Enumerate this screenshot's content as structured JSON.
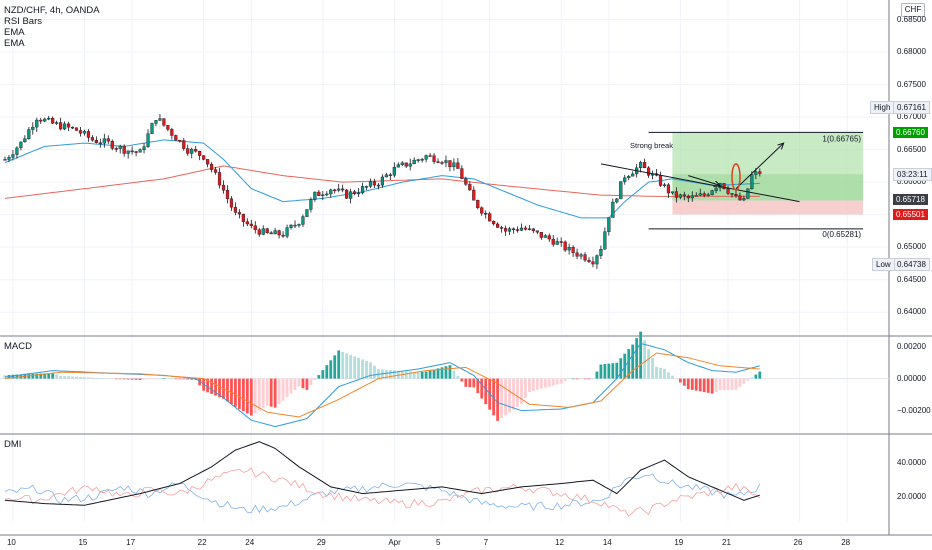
{
  "legend": {
    "symbol": "NZD/CHF, 4h, OANDA",
    "lines": [
      "RSI Bars",
      "EMA",
      "EMA"
    ]
  },
  "currency_badge": "CHF",
  "panes": {
    "macd_title": "MACD",
    "dmi_title": "DMI"
  },
  "price_axis": {
    "ticks": [
      "0.68500",
      "0.68000",
      "0.67500",
      "0.67000",
      "0.66500",
      "0.66000",
      "0.65500",
      "0.65000",
      "0.64500",
      "0.64000"
    ],
    "tick_values": [
      0.685,
      0.68,
      0.675,
      0.67,
      0.665,
      0.66,
      0.655,
      0.65,
      0.645,
      0.64
    ],
    "range": [
      0.6365,
      0.688
    ]
  },
  "price_tags": {
    "high_label": "High",
    "high_value": "0.67161",
    "high": 0.67161,
    "low_label": "Low",
    "low_value": "0.64738",
    "low": 0.64738,
    "take_profit": "0.66760",
    "take_profit_v": 0.6676,
    "countdown": "03:23:11",
    "countdown_v": 0.6612,
    "last_price": "0.65718",
    "last_price_v": 0.65718,
    "stop_loss": "0.65501",
    "stop_loss_v": 0.65501
  },
  "fib": {
    "top_label": "1(0.66765)",
    "top_v": 0.66765,
    "bottom_label": "0(0.65281)",
    "bottom_v": 0.65281
  },
  "annotation": "Strong break",
  "macd_axis": {
    "ticks": [
      "0.00200",
      "0.00000",
      "−0.00200"
    ],
    "tick_values": [
      0.002,
      0,
      -0.002
    ],
    "range": [
      -0.0034,
      0.0026
    ]
  },
  "dmi_axis": {
    "ticks": [
      "40.0000",
      "20.0000"
    ],
    "tick_values": [
      40,
      20
    ],
    "range": [
      5,
      57
    ]
  },
  "time_axis": {
    "labels": [
      "10",
      "15",
      "17",
      "22",
      "24",
      "29",
      "Apr",
      "5",
      "7",
      "12",
      "14",
      "19",
      "21",
      "26",
      "28"
    ],
    "bars": [
      2,
      20,
      32,
      50,
      62,
      80,
      98,
      110,
      122,
      140,
      152,
      170,
      182,
      200,
      212
    ]
  },
  "chart_data": {
    "type": "candlestick",
    "title": "NZD/CHF, 4h, OANDA",
    "bars_total": 220,
    "ohlc_anchors": [
      [
        0,
        0.6635
      ],
      [
        4,
        0.666
      ],
      [
        8,
        0.67
      ],
      [
        12,
        0.669
      ],
      [
        18,
        0.668
      ],
      [
        22,
        0.6665
      ],
      [
        26,
        0.666
      ],
      [
        30,
        0.665
      ],
      [
        34,
        0.6645
      ],
      [
        38,
        0.67
      ],
      [
        42,
        0.6675
      ],
      [
        46,
        0.665
      ],
      [
        50,
        0.664
      ],
      [
        54,
        0.66
      ],
      [
        58,
        0.655
      ],
      [
        62,
        0.653
      ],
      [
        66,
        0.652
      ],
      [
        70,
        0.652
      ],
      [
        74,
        0.654
      ],
      [
        78,
        0.658
      ],
      [
        82,
        0.659
      ],
      [
        86,
        0.658
      ],
      [
        90,
        0.659
      ],
      [
        94,
        0.66
      ],
      [
        98,
        0.662
      ],
      [
        102,
        0.663
      ],
      [
        106,
        0.664
      ],
      [
        110,
        0.6635
      ],
      [
        114,
        0.662
      ],
      [
        118,
        0.657
      ],
      [
        122,
        0.6545
      ],
      [
        126,
        0.6525
      ],
      [
        130,
        0.653
      ],
      [
        134,
        0.652
      ],
      [
        138,
        0.651
      ],
      [
        142,
        0.6495
      ],
      [
        148,
        0.648
      ],
      [
        150,
        0.65
      ],
      [
        152,
        0.655
      ],
      [
        156,
        0.661
      ],
      [
        160,
        0.6625
      ],
      [
        164,
        0.6605
      ],
      [
        168,
        0.658
      ],
      [
        172,
        0.6575
      ],
      [
        176,
        0.658
      ],
      [
        180,
        0.66
      ],
      [
        184,
        0.6575
      ],
      [
        186,
        0.657
      ],
      [
        188,
        0.661
      ],
      [
        190,
        0.6615
      ]
    ],
    "ema_fast_anchors": [
      [
        0,
        0.663
      ],
      [
        10,
        0.6655
      ],
      [
        20,
        0.666
      ],
      [
        30,
        0.6655
      ],
      [
        40,
        0.6665
      ],
      [
        50,
        0.666
      ],
      [
        55,
        0.6635
      ],
      [
        62,
        0.659
      ],
      [
        70,
        0.657
      ],
      [
        80,
        0.6575
      ],
      [
        90,
        0.6585
      ],
      [
        100,
        0.66
      ],
      [
        110,
        0.661
      ],
      [
        118,
        0.6605
      ],
      [
        124,
        0.659
      ],
      [
        134,
        0.6565
      ],
      [
        145,
        0.6545
      ],
      [
        152,
        0.6545
      ],
      [
        156,
        0.657
      ],
      [
        162,
        0.66
      ],
      [
        168,
        0.6605
      ],
      [
        178,
        0.6595
      ],
      [
        190,
        0.6598
      ]
    ],
    "ema_slow_anchors": [
      [
        0,
        0.6575
      ],
      [
        20,
        0.659
      ],
      [
        40,
        0.6605
      ],
      [
        55,
        0.6625
      ],
      [
        70,
        0.661
      ],
      [
        85,
        0.66
      ],
      [
        110,
        0.6605
      ],
      [
        125,
        0.6595
      ],
      [
        150,
        0.658
      ],
      [
        165,
        0.6578
      ],
      [
        190,
        0.6578
      ]
    ],
    "macd_line_anchors": [
      [
        0,
        0.0001
      ],
      [
        12,
        0.0005
      ],
      [
        30,
        0.0003
      ],
      [
        40,
        0.0002
      ],
      [
        48,
        0.0
      ],
      [
        55,
        -0.0012
      ],
      [
        62,
        -0.0026
      ],
      [
        68,
        -0.003
      ],
      [
        76,
        -0.0025
      ],
      [
        84,
        -0.0005
      ],
      [
        92,
        0.0002
      ],
      [
        104,
        0.0006
      ],
      [
        112,
        0.001
      ],
      [
        118,
        0.0002
      ],
      [
        124,
        -0.0015
      ],
      [
        130,
        -0.002
      ],
      [
        140,
        -0.0019
      ],
      [
        148,
        -0.0015
      ],
      [
        154,
        0.0
      ],
      [
        160,
        0.0022
      ],
      [
        166,
        0.0018
      ],
      [
        172,
        0.001
      ],
      [
        178,
        0.0005
      ],
      [
        184,
        0.0004
      ],
      [
        190,
        0.0008
      ]
    ],
    "macd_signal_anchors": [
      [
        0,
        0.0
      ],
      [
        14,
        0.0004
      ],
      [
        34,
        0.0003
      ],
      [
        50,
        0.0
      ],
      [
        58,
        -0.001
      ],
      [
        66,
        -0.0021
      ],
      [
        74,
        -0.0024
      ],
      [
        84,
        -0.0013
      ],
      [
        94,
        0.0
      ],
      [
        106,
        0.0005
      ],
      [
        116,
        0.0007
      ],
      [
        124,
        -0.0003
      ],
      [
        132,
        -0.0016
      ],
      [
        142,
        -0.0018
      ],
      [
        150,
        -0.0014
      ],
      [
        158,
        0.0005
      ],
      [
        164,
        0.0016
      ],
      [
        172,
        0.0013
      ],
      [
        180,
        0.0008
      ],
      [
        190,
        0.0006
      ]
    ],
    "adx_anchors": [
      [
        0,
        18
      ],
      [
        10,
        16
      ],
      [
        20,
        15
      ],
      [
        34,
        22
      ],
      [
        44,
        28
      ],
      [
        52,
        38
      ],
      [
        58,
        48
      ],
      [
        64,
        53
      ],
      [
        68,
        49
      ],
      [
        74,
        38
      ],
      [
        82,
        26
      ],
      [
        90,
        22
      ],
      [
        100,
        24
      ],
      [
        110,
        26
      ],
      [
        120,
        22
      ],
      [
        130,
        26
      ],
      [
        140,
        28
      ],
      [
        148,
        30
      ],
      [
        154,
        22
      ],
      [
        160,
        36
      ],
      [
        166,
        42
      ],
      [
        172,
        32
      ],
      [
        180,
        24
      ],
      [
        186,
        18
      ],
      [
        190,
        21
      ]
    ],
    "di_plus_anchors": [
      [
        0,
        22
      ],
      [
        8,
        25
      ],
      [
        14,
        18
      ],
      [
        22,
        20
      ],
      [
        30,
        26
      ],
      [
        36,
        22
      ],
      [
        44,
        28
      ],
      [
        52,
        18
      ],
      [
        60,
        12
      ],
      [
        70,
        14
      ],
      [
        80,
        22
      ],
      [
        90,
        25
      ],
      [
        100,
        28
      ],
      [
        110,
        24
      ],
      [
        120,
        16
      ],
      [
        130,
        14
      ],
      [
        140,
        15
      ],
      [
        150,
        18
      ],
      [
        156,
        30
      ],
      [
        162,
        34
      ],
      [
        168,
        28
      ],
      [
        176,
        24
      ],
      [
        184,
        20
      ],
      [
        190,
        26
      ]
    ],
    "di_minus_anchors": [
      [
        0,
        20
      ],
      [
        8,
        18
      ],
      [
        14,
        22
      ],
      [
        22,
        26
      ],
      [
        30,
        20
      ],
      [
        36,
        24
      ],
      [
        44,
        22
      ],
      [
        52,
        30
      ],
      [
        60,
        36
      ],
      [
        70,
        30
      ],
      [
        80,
        22
      ],
      [
        90,
        18
      ],
      [
        100,
        16
      ],
      [
        110,
        17
      ],
      [
        120,
        24
      ],
      [
        130,
        26
      ],
      [
        140,
        22
      ],
      [
        150,
        17
      ],
      [
        156,
        10
      ],
      [
        162,
        12
      ],
      [
        168,
        18
      ],
      [
        176,
        22
      ],
      [
        184,
        26
      ],
      [
        190,
        20
      ]
    ],
    "position": {
      "start_bar": 168,
      "end_bar": 216,
      "entry": 0.65718,
      "stop": 0.65501,
      "target": 0.6676
    },
    "trendline": [
      [
        150,
        0.6628
      ],
      [
        200,
        0.657
      ]
    ],
    "arrows": [
      [
        172,
        0.661,
        180,
        0.6595
      ],
      [
        184,
        0.659,
        196,
        0.666
      ]
    ],
    "fib_span": [
      162,
      216
    ],
    "ellipse": {
      "bar": 184,
      "price": 0.6608
    }
  },
  "colors": {
    "up": "#089981",
    "down": "#e01b1b",
    "ema_fast": "#2f9cdb",
    "ema_slow": "#e8655a",
    "macd": "#2f9cdb",
    "signal": "#f2852a",
    "adx": "#131722",
    "di_plus": "#7fb3ea",
    "di_minus": "#f4a0a0",
    "tp_zone": "#b6e3b0",
    "sl_zone": "#f6c7c7"
  }
}
